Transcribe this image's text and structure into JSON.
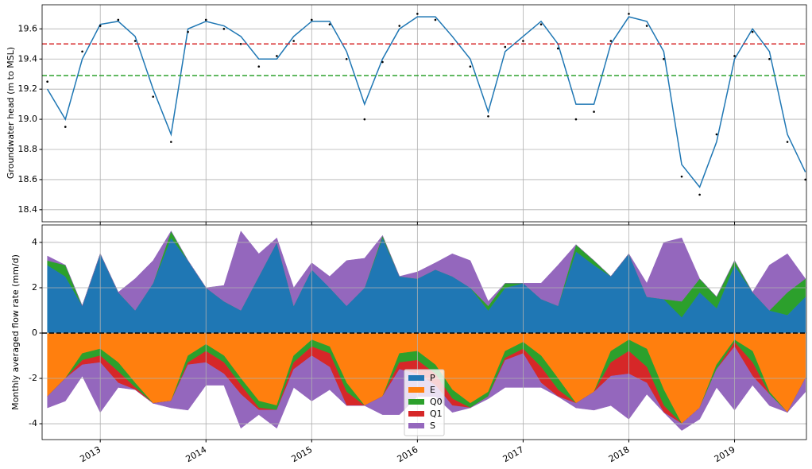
{
  "chart_data": [
    {
      "type": "line",
      "ylabel": "Groundwater head (m to MSL)",
      "x": [
        2012.5,
        2012.67,
        2012.83,
        2013,
        2013.17,
        2013.33,
        2013.5,
        2013.67,
        2013.83,
        2014,
        2014.17,
        2014.33,
        2014.5,
        2014.67,
        2014.83,
        2015,
        2015.17,
        2015.33,
        2015.5,
        2015.67,
        2015.83,
        2016,
        2016.17,
        2016.33,
        2016.5,
        2016.67,
        2016.83,
        2017,
        2017.17,
        2017.33,
        2017.5,
        2017.67,
        2017.83,
        2018,
        2018.17,
        2018.33,
        2018.5,
        2018.67,
        2018.83,
        2019,
        2019.17,
        2019.33,
        2019.5,
        2019.67
      ],
      "series": [
        {
          "style": "line",
          "color": "#1f77b4",
          "values": [
            19.2,
            19.0,
            19.4,
            19.63,
            19.65,
            19.55,
            19.2,
            18.9,
            19.6,
            19.65,
            19.62,
            19.55,
            19.4,
            19.4,
            19.55,
            19.65,
            19.65,
            19.45,
            19.1,
            19.4,
            19.6,
            19.68,
            19.68,
            19.55,
            19.4,
            19.05,
            19.45,
            19.55,
            19.65,
            19.5,
            19.1,
            19.1,
            19.5,
            19.68,
            19.65,
            19.45,
            18.7,
            18.55,
            18.85,
            19.4,
            19.6,
            19.45,
            18.9,
            18.65
          ]
        },
        {
          "style": "scatter",
          "color": "#000000",
          "values": [
            19.25,
            18.95,
            19.45,
            19.62,
            19.66,
            19.52,
            19.15,
            18.85,
            19.58,
            19.66,
            19.6,
            19.5,
            19.35,
            19.42,
            19.52,
            19.66,
            19.63,
            19.4,
            19.0,
            19.38,
            19.62,
            19.7,
            19.66,
            19.5,
            19.35,
            19.02,
            19.48,
            19.52,
            19.63,
            19.47,
            19.0,
            19.05,
            19.52,
            19.7,
            19.62,
            19.4,
            18.62,
            18.5,
            18.9,
            19.42,
            19.58,
            19.4,
            18.85,
            18.6
          ]
        }
      ],
      "hlines": [
        {
          "value": 19.5,
          "color": "#d62728"
        },
        {
          "value": 19.29,
          "color": "#2ca02c"
        }
      ],
      "xlim": [
        2012.45,
        2019.68
      ],
      "xticks": [
        2013,
        2014,
        2015,
        2016,
        2017,
        2018,
        2019
      ],
      "ylim": [
        18.32,
        19.76
      ],
      "yticks": [
        18.4,
        18.6,
        18.8,
        {
          "value": 19,
          "label": "19.0"
        },
        19.2,
        19.4,
        19.6
      ],
      "grid": true
    },
    {
      "type": "stackplot",
      "ylabel": "Monthly averaged flow rate (mm/d)",
      "x": [
        2012.5,
        2012.67,
        2012.83,
        2013,
        2013.17,
        2013.33,
        2013.5,
        2013.67,
        2013.83,
        2014,
        2014.17,
        2014.33,
        2014.5,
        2014.67,
        2014.83,
        2015,
        2015.17,
        2015.33,
        2015.5,
        2015.67,
        2015.83,
        2016,
        2016.17,
        2016.33,
        2016.5,
        2016.67,
        2016.83,
        2017,
        2017.17,
        2017.33,
        2017.5,
        2017.67,
        2017.83,
        2018,
        2018.17,
        2018.33,
        2018.5,
        2018.67,
        2018.83,
        2019,
        2019.17,
        2019.33,
        2019.5,
        2019.67
      ],
      "series": [
        {
          "name": "P",
          "color": "#1f77b4",
          "positive": [
            3.0,
            2.5,
            1.2,
            3.5,
            1.8,
            1.0,
            2.2,
            4.2,
            3.2,
            2.0,
            1.4,
            1.0,
            2.5,
            4.0,
            1.2,
            2.8,
            2.0,
            1.2,
            2.0,
            4.2,
            2.5,
            2.4,
            2.8,
            2.5,
            2.0,
            1.0,
            2.0,
            2.2,
            1.5,
            1.2,
            3.6,
            3.0,
            2.5,
            3.5,
            1.6,
            1.5,
            0.7,
            1.8,
            1.1,
            3.0,
            1.8,
            1.0,
            0.8,
            1.6
          ]
        },
        {
          "name": "E",
          "color": "#ff7f0e",
          "negative": [
            -2.8,
            -2.0,
            -0.9,
            -0.7,
            -1.3,
            -2.2,
            -3.1,
            -3.0,
            -1.0,
            -0.5,
            -1.0,
            -2.0,
            -3.0,
            -3.2,
            -1.0,
            -0.3,
            -0.6,
            -2.2,
            -3.2,
            -2.8,
            -0.9,
            -0.8,
            -1.4,
            -2.5,
            -3.1,
            -2.6,
            -0.8,
            -0.4,
            -1.0,
            -2.0,
            -3.1,
            -2.6,
            -0.8,
            -0.3,
            -0.7,
            -2.5,
            -4.0,
            -3.3,
            -1.4,
            -0.3,
            -0.8,
            -2.6,
            -3.5,
            -2.0
          ]
        },
        {
          "name": "Q0",
          "color": "#2ca02c",
          "positive": [
            0.2,
            0.5,
            0,
            0,
            0,
            0,
            0,
            0.3,
            0,
            0,
            0,
            0,
            0,
            0,
            0,
            0,
            0,
            0,
            0,
            0.1,
            0,
            0,
            0,
            0,
            0,
            0.2,
            0.2,
            0,
            0,
            0,
            0.3,
            0.2,
            0,
            0,
            0,
            0,
            0.7,
            0.6,
            0.5,
            0.2,
            0,
            0,
            1.0,
            0.8
          ],
          "negative": [
            0,
            0,
            -0.3,
            -0.3,
            -0.4,
            -0.2,
            0,
            0,
            -0.3,
            -0.3,
            -0.3,
            -0.3,
            -0.3,
            -0.2,
            -0.3,
            -0.3,
            -0.3,
            -0.4,
            0,
            0,
            -0.4,
            -0.4,
            -0.4,
            -0.4,
            -0.2,
            -0.2,
            -0.3,
            -0.3,
            -0.5,
            -0.5,
            0,
            0,
            -0.5,
            -0.5,
            -0.8,
            -0.7,
            0,
            0,
            -0.2,
            -0.1,
            -0.5,
            -0.1,
            0,
            0
          ]
        },
        {
          "name": "Q1",
          "color": "#d62728",
          "negative": [
            0,
            0,
            -0.2,
            -0.3,
            -0.5,
            -0.1,
            0,
            0,
            -0.1,
            -0.5,
            -0.5,
            -0.4,
            -0.1,
            0,
            -0.3,
            -0.4,
            -0.6,
            -0.6,
            0,
            0,
            -0.3,
            -0.6,
            -0.5,
            -0.3,
            0,
            0,
            -0.1,
            -0.2,
            -0.7,
            -0.3,
            0,
            0,
            -0.6,
            -1.0,
            -0.7,
            -0.3,
            0,
            0,
            0,
            -0.2,
            -0.6,
            0,
            0,
            0
          ]
        },
        {
          "name": "S",
          "color": "#9467bd",
          "positive": [
            0.2,
            0,
            0,
            0,
            0,
            1.4,
            1.0,
            0,
            0,
            0,
            0.7,
            3.5,
            1.0,
            0.2,
            0.8,
            0.3,
            0.5,
            2.0,
            1.3,
            0,
            0,
            0.3,
            0.3,
            1.0,
            1.2,
            0.2,
            0,
            0,
            0.7,
            1.8,
            0,
            0,
            0,
            0,
            0.6,
            2.5,
            2.8,
            0,
            0,
            0,
            0,
            2.0,
            1.7,
            0
          ],
          "negative": [
            -0.5,
            -1.0,
            -0.5,
            -2.2,
            -0.2,
            0,
            0,
            -0.3,
            -2.0,
            -1.0,
            -0.5,
            -1.5,
            -0.2,
            -0.8,
            -0.8,
            -2.0,
            -1.0,
            0,
            0,
            -0.8,
            -2.0,
            -1.0,
            -0.5,
            -0.3,
            0,
            -0.1,
            -1.2,
            -1.5,
            -0.2,
            0,
            -0.2,
            -0.8,
            -1.3,
            -2.0,
            -0.5,
            0,
            -0.3,
            -0.5,
            -0.8,
            -2.8,
            -0.4,
            -0.5,
            0,
            -0.6
          ]
        }
      ],
      "hlines": [
        {
          "value": 0,
          "color": "#000000"
        }
      ],
      "xlim": [
        2012.45,
        2019.68
      ],
      "xticks": [
        2013,
        2014,
        2015,
        2016,
        2017,
        2018,
        2019
      ],
      "ylim": [
        -4.7,
        4.77
      ],
      "yticks": [
        -4,
        -2,
        0,
        2,
        4
      ],
      "grid": true,
      "legend": "lower center"
    }
  ]
}
